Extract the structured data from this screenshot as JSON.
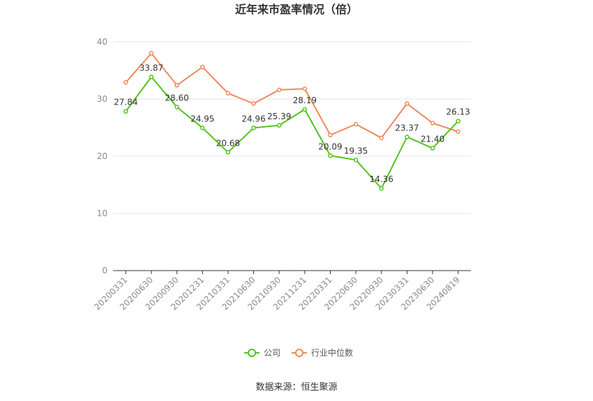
{
  "chart_data": {
    "type": "line",
    "title": "近年来市盈率情况（倍）",
    "categories": [
      "20200331",
      "20200630",
      "20200930",
      "20201231",
      "20210331",
      "20210630",
      "20210930",
      "20211231",
      "20220331",
      "20220630",
      "20220930",
      "20230331",
      "20230630",
      "20240819"
    ],
    "series": [
      {
        "name": "公司",
        "color": "#52c41a",
        "values": [
          27.84,
          33.87,
          28.6,
          24.95,
          20.68,
          24.96,
          25.39,
          28.19,
          20.09,
          19.35,
          14.36,
          23.37,
          21.4,
          26.13
        ],
        "labels": [
          "27.84",
          "33.87",
          "28.60",
          "24.95",
          "20.68",
          "24.96",
          "25.39",
          "28.19",
          "20.09",
          "19.35",
          "14.36",
          "23.37",
          "21.40",
          "26.13"
        ]
      },
      {
        "name": "行业中位数",
        "color": "#f0895a",
        "values": [
          32.9,
          38.0,
          32.4,
          35.6,
          31.0,
          29.2,
          31.6,
          31.8,
          23.7,
          25.6,
          23.2,
          29.2,
          25.8,
          24.3
        ]
      }
    ],
    "ylim": [
      0,
      40
    ],
    "yticks": [
      "0",
      "10",
      "20",
      "30",
      "40"
    ],
    "grid": true,
    "legend_position": "bottom"
  },
  "source": "数据来源：恒生聚源"
}
